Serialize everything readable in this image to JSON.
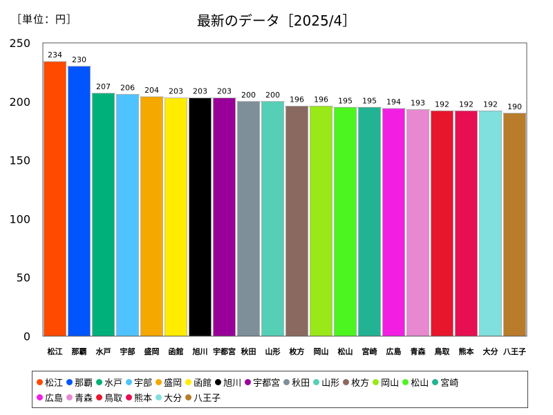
{
  "unit_label": "［単位：円］",
  "chart_data": {
    "type": "bar",
    "title": "最新のデータ［2025/4］",
    "xlabel": "",
    "ylabel": "",
    "ylim": [
      0,
      250
    ],
    "yticks": [
      0,
      50,
      100,
      150,
      200,
      250
    ],
    "grid": false,
    "legend": "bottom",
    "categories": [
      "松江",
      "那覇",
      "水戸",
      "宇部",
      "盛岡",
      "函館",
      "旭川",
      "宇都宮",
      "秋田",
      "山形",
      "枚方",
      "岡山",
      "松山",
      "宮崎",
      "広島",
      "青森",
      "鳥取",
      "熊本",
      "大分",
      "八王子"
    ],
    "values": [
      234,
      230,
      207,
      206,
      204,
      203,
      203,
      203,
      200,
      200,
      196,
      196,
      195,
      195,
      194,
      193,
      192,
      192,
      192,
      190
    ],
    "colors": [
      "#ff4a00",
      "#0055ff",
      "#00b07a",
      "#4fc3ff",
      "#f5a800",
      "#ffec00",
      "#000000",
      "#990099",
      "#7f8f99",
      "#55cfb5",
      "#8a6a60",
      "#99e817",
      "#4cf51f",
      "#22b394",
      "#f21fe3",
      "#e888d0",
      "#e8162c",
      "#e80e52",
      "#80e0dd",
      "#b87c2b"
    ]
  }
}
